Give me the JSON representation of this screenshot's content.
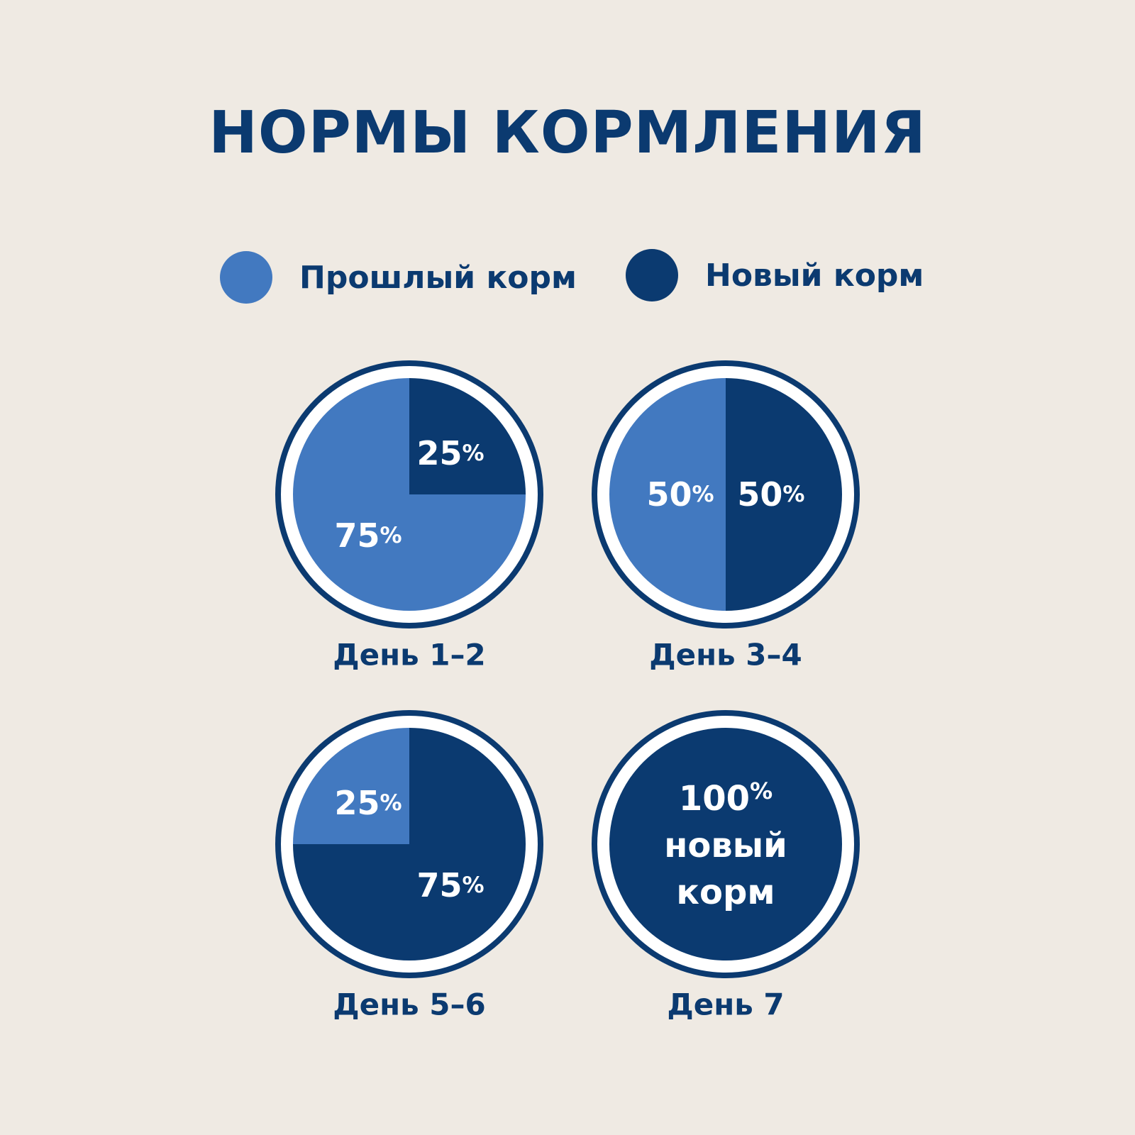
{
  "title": "НОРМЫ КОРМЛЕНИЯ",
  "legend": [
    {
      "label": "Прошлый корм",
      "color": "#4279C0"
    },
    {
      "label": "Новый корм",
      "color": "#0B3A70"
    }
  ],
  "colors": {
    "old": "#4279C0",
    "new": "#0B3A70",
    "background": "#EFEAE3",
    "ring_outer": "#0B3A70",
    "ring_gap": "#FFFFFF",
    "label_text": "#FFFFFF"
  },
  "chart_data": [
    {
      "type": "pie",
      "title": "День 1–2",
      "series": [
        {
          "name": "Прошлый корм",
          "value": 75,
          "label": "75",
          "unit": "%"
        },
        {
          "name": "Новый корм",
          "value": 25,
          "label": "25",
          "unit": "%"
        }
      ]
    },
    {
      "type": "pie",
      "title": "День 3–4",
      "series": [
        {
          "name": "Прошлый корм",
          "value": 50,
          "label": "50",
          "unit": "%"
        },
        {
          "name": "Новый корм",
          "value": 50,
          "label": "50",
          "unit": "%"
        }
      ]
    },
    {
      "type": "pie",
      "title": "День 5–6",
      "series": [
        {
          "name": "Прошлый корм",
          "value": 25,
          "label": "25",
          "unit": "%"
        },
        {
          "name": "Новый корм",
          "value": 75,
          "label": "75",
          "unit": "%"
        }
      ]
    },
    {
      "type": "pie",
      "title": "День 7",
      "series": [
        {
          "name": "Прошлый корм",
          "value": 0,
          "label": "",
          "unit": ""
        },
        {
          "name": "Новый корм",
          "value": 100,
          "label": "100",
          "unit": "%"
        }
      ],
      "caption_lines": [
        "новый",
        "корм"
      ]
    }
  ]
}
